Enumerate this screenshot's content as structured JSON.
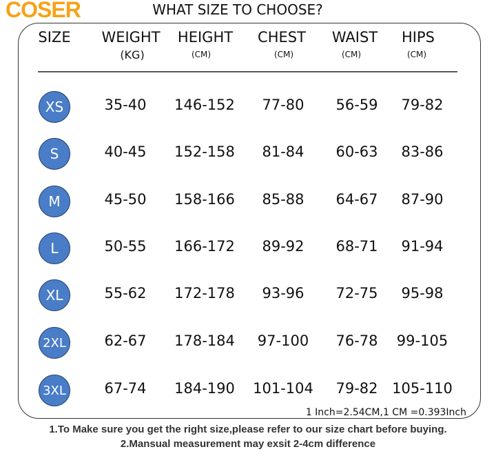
{
  "title": "WHAT SIZE TO CHOOSE?",
  "watermark": "COSER",
  "headers": [
    {
      "label": "SIZE",
      "unit": ""
    },
    {
      "label": "WEIGHT",
      "unit": "(KG)"
    },
    {
      "label": "HEIGHT",
      "unit": "(CM)"
    },
    {
      "label": "CHEST",
      "unit": "(CM)"
    },
    {
      "label": "WAIST",
      "unit": "(CM)"
    },
    {
      "label": "HIPS",
      "unit": "(CM)"
    }
  ],
  "rows": [
    {
      "size": "XS",
      "weight": "35-40",
      "height": "146-152",
      "chest": "77-80",
      "waist": "56-59",
      "hips": "79-82"
    },
    {
      "size": "S",
      "weight": "40-45",
      "height": "152-158",
      "chest": "81-84",
      "waist": "60-63",
      "hips": "83-86"
    },
    {
      "size": "M",
      "weight": "45-50",
      "height": "158-166",
      "chest": "85-88",
      "waist": "64-67",
      "hips": "87-90"
    },
    {
      "size": "L",
      "weight": "50-55",
      "height": "166-172",
      "chest": "89-92",
      "waist": "68-71",
      "hips": "91-94"
    },
    {
      "size": "XL",
      "weight": "55-62",
      "height": "172-178",
      "chest": "93-96",
      "waist": "72-75",
      "hips": "95-98"
    },
    {
      "size": "2XL",
      "weight": "62-67",
      "height": "178-184",
      "chest": "97-100",
      "waist": "76-78",
      "hips": "99-105"
    },
    {
      "size": "3XL",
      "weight": "67-74",
      "height": "184-190",
      "chest": "101-104",
      "waist": "79-82",
      "hips": "105-110"
    }
  ],
  "conversion": "1 Inch=2.54CM,1 CM =0.393Inch",
  "notes": [
    "1.To Make sure you get the right size,please refer to our size chart before buying.",
    "2.Mansual measurement may exsit 2-4cm difference"
  ],
  "colors": {
    "badge_fill": "#4a7dc8",
    "badge_border": "#2a4470",
    "watermark": "#f7a218"
  }
}
